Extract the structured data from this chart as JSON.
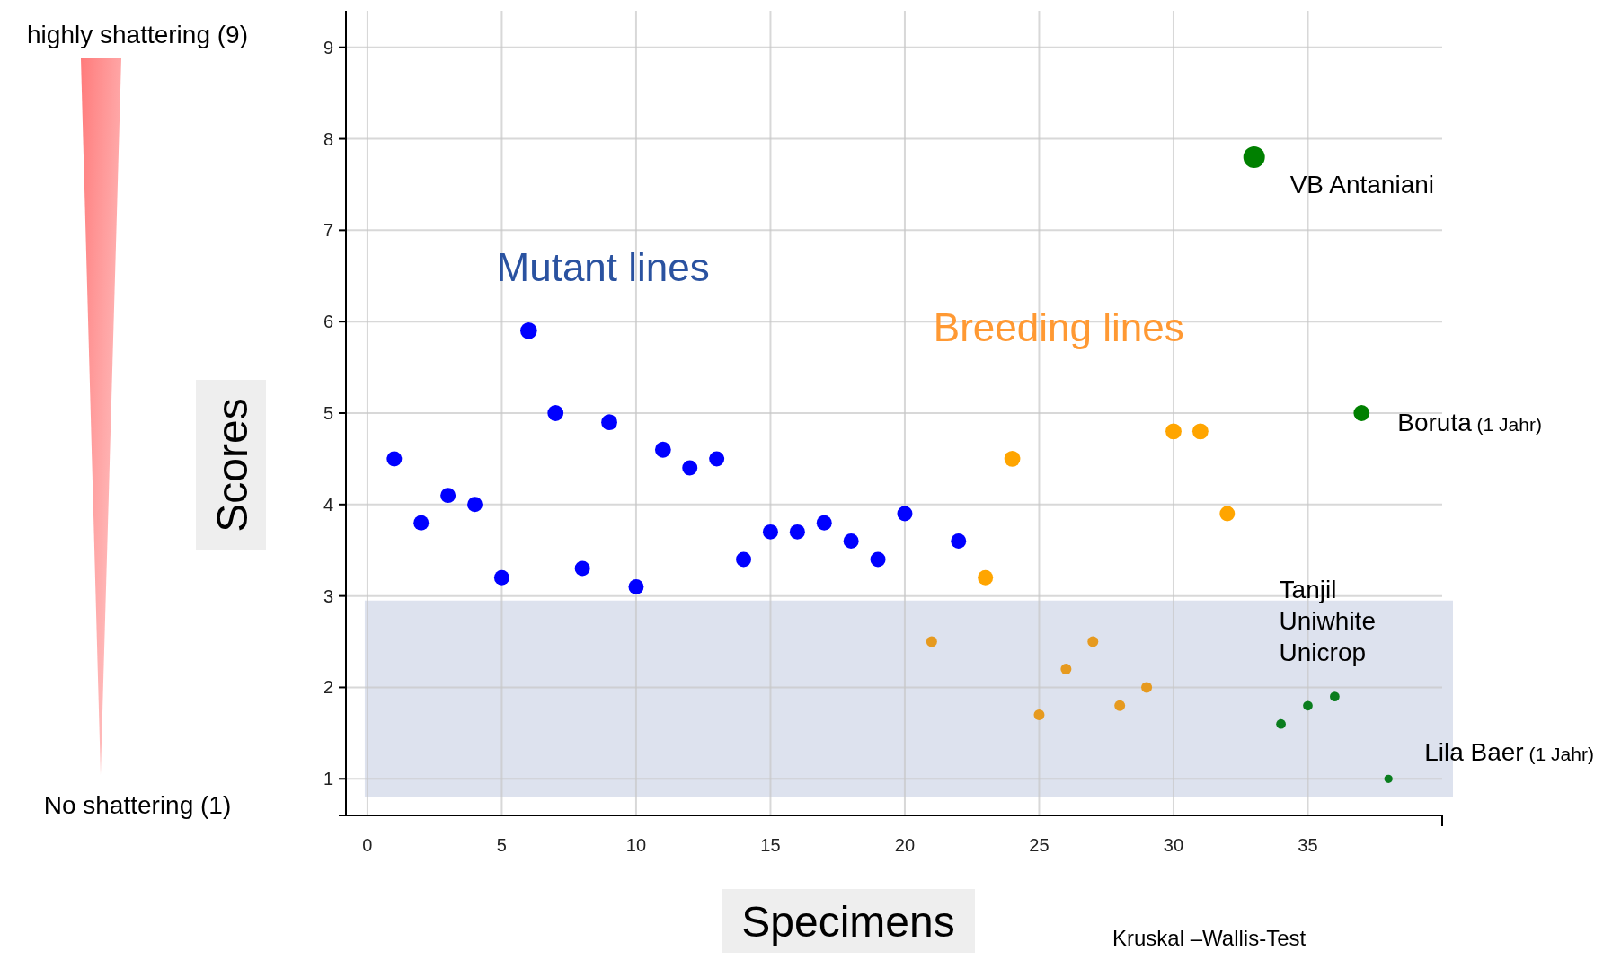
{
  "chart_data": {
    "type": "bubble",
    "xlabel": "Specimens",
    "ylabel": "Scores",
    "xlim": [
      -0.8,
      40
    ],
    "ylim": [
      0.6,
      9.4
    ],
    "xticks": [
      0,
      5,
      10,
      15,
      20,
      25,
      30,
      35
    ],
    "yticks": [
      1,
      2,
      3,
      4,
      5,
      6,
      7,
      8,
      9
    ],
    "grid": true,
    "marker": "circle",
    "bands": [
      {
        "axis": "y",
        "from": 0.8,
        "to": 2.95,
        "color": "#dde2ee"
      }
    ],
    "series": [
      {
        "name": "Mutant lines",
        "color": "#0000ff",
        "x": [
          1,
          2,
          3,
          4,
          5,
          6,
          7,
          8,
          9,
          10,
          11,
          12,
          13,
          14,
          15,
          16,
          17,
          18,
          19,
          20,
          22
        ],
        "values": [
          4.5,
          3.8,
          4.1,
          4.0,
          3.2,
          5.9,
          5.0,
          3.3,
          4.9,
          3.1,
          4.6,
          4.4,
          4.5,
          3.4,
          3.7,
          3.7,
          3.8,
          3.6,
          3.4,
          3.9,
          3.6
        ],
        "sizes": [
          0.5,
          0.5,
          0.5,
          0.5,
          0.5,
          0.6,
          0.55,
          0.5,
          0.55,
          0.5,
          0.55,
          0.5,
          0.5,
          0.5,
          0.5,
          0.5,
          0.5,
          0.5,
          0.5,
          0.5,
          0.5
        ]
      },
      {
        "name": "Breeding lines",
        "color": "#ff9933",
        "colors": [
          "#e69a1f",
          "#ffa500",
          "#ffa500",
          "#e69a1f",
          "#e69a1f",
          "#e69a1f",
          "#e69a1f",
          "#e69a1f",
          "#ffa500",
          "#ffa500",
          "#ffa500"
        ],
        "x": [
          21,
          23,
          24,
          25,
          26,
          27,
          28,
          29,
          30,
          31,
          32
        ],
        "values": [
          2.5,
          3.2,
          4.5,
          1.7,
          2.2,
          2.5,
          1.8,
          2.0,
          4.8,
          4.8,
          3.9
        ],
        "sizes": [
          0.25,
          0.5,
          0.55,
          0.25,
          0.25,
          0.25,
          0.25,
          0.25,
          0.55,
          0.55,
          0.5
        ]
      },
      {
        "colors": [
          "#008000",
          "#0a7d1e",
          "#0a7d1e",
          "#0a7d1e",
          "#008000",
          "#0a7d1e"
        ],
        "x": [
          33,
          34,
          35,
          36,
          37,
          38
        ],
        "values": [
          7.8,
          1.6,
          1.8,
          1.9,
          5.0,
          1.0
        ],
        "sizes": [
          1,
          0.2,
          0.2,
          0.2,
          0.55,
          0.15
        ]
      }
    ],
    "annotations": [
      "highly shattering (9)",
      "No shattering (1)",
      "Kruskal –Wallis-Test",
      {
        "text": "VB Antaniani",
        "x": 33,
        "y": 7.8
      },
      {
        "text": "Boruta (1 Jahr)",
        "x": 37,
        "y": 5.0
      },
      {
        "text": "Tanjil\nUniwhite\nUnicrop",
        "x": 34,
        "y": 1.6
      },
      {
        "text": "Lila Baer (1 Jahr)",
        "x": 38,
        "y": 1.0
      }
    ]
  }
}
